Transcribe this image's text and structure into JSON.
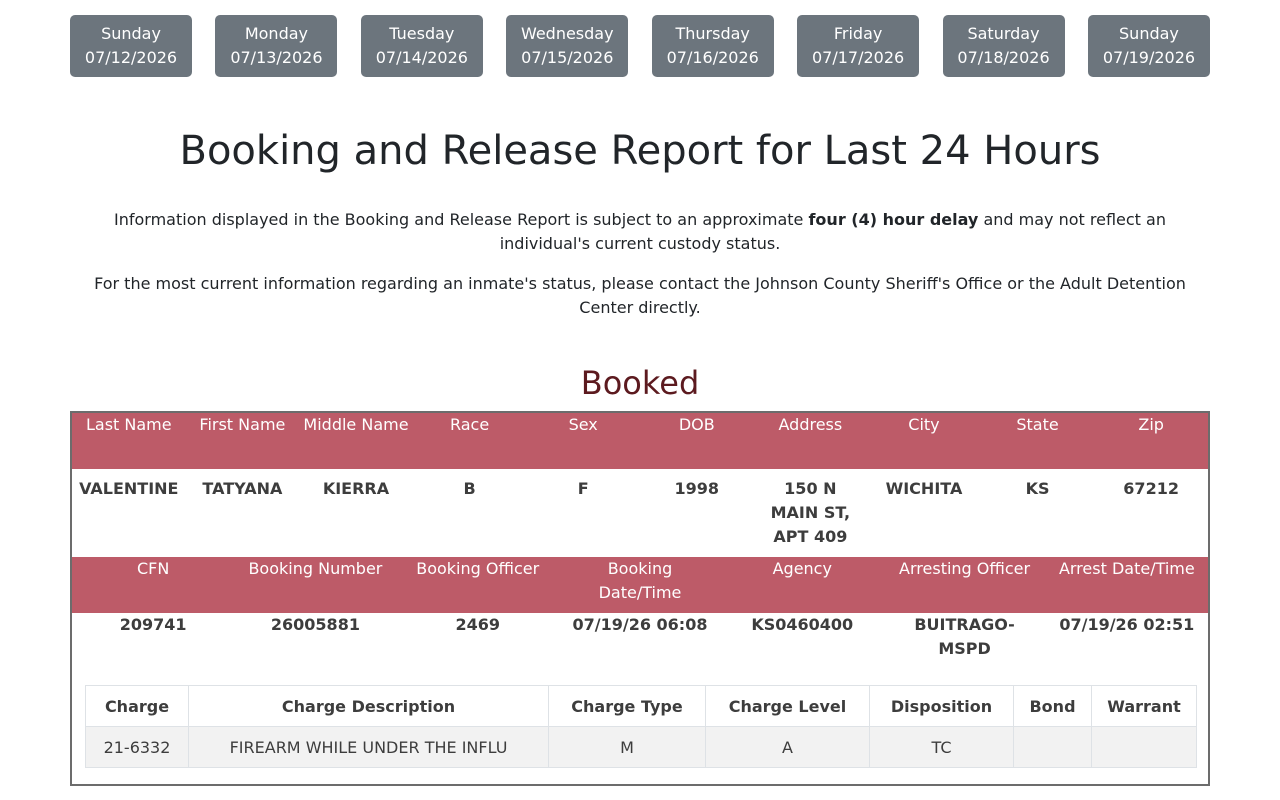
{
  "days": [
    {
      "day": "Sunday",
      "date": "07/12/2026"
    },
    {
      "day": "Monday",
      "date": "07/13/2026"
    },
    {
      "day": "Tuesday",
      "date": "07/14/2026"
    },
    {
      "day": "Wednesday",
      "date": "07/15/2026"
    },
    {
      "day": "Thursday",
      "date": "07/16/2026"
    },
    {
      "day": "Friday",
      "date": "07/17/2026"
    },
    {
      "day": "Saturday",
      "date": "07/18/2026"
    },
    {
      "day": "Sunday",
      "date": "07/19/2026"
    }
  ],
  "title": "Booking and Release Report for Last 24 Hours",
  "notice1": {
    "before": "Information displayed in the Booking and Release Report is subject to an approximate ",
    "bold": "four (4) hour delay",
    "after": " and may not reflect an individual's current custody status."
  },
  "notice2": "For the most current information regarding an inmate's status, please contact the Johnson County Sheriff's Office or the Adult Detention Center directly.",
  "section_title": "Booked",
  "person_headers": [
    "Last Name",
    "First Name",
    "Middle Name",
    "Race",
    "Sex",
    "DOB",
    "Address",
    "City",
    "State",
    "Zip"
  ],
  "person_values": [
    "VALENTINE",
    "TATYANA",
    "KIERRA",
    "B",
    "F",
    "1998",
    "150 N MAIN ST, APT 409",
    "WICHITA",
    "KS",
    "67212"
  ],
  "booking_headers": [
    "CFN",
    "Booking Number",
    "Booking Officer",
    "Booking Date/Time",
    "Agency",
    "Arresting Officer",
    "Arrest Date/Time"
  ],
  "booking_values": [
    "209741",
    "26005881",
    "2469",
    "07/19/26 06:08",
    "KS0460400",
    "BUITRAGO-MSPD",
    "07/19/26 02:51"
  ],
  "charge_headers": [
    "Charge",
    "Charge Description",
    "Charge Type",
    "Charge Level",
    "Disposition",
    "Bond",
    "Warrant"
  ],
  "charges": [
    [
      "21-6332",
      "FIREARM WHILE UNDER THE INFLU",
      "M",
      "A",
      "TC",
      "",
      ""
    ]
  ]
}
